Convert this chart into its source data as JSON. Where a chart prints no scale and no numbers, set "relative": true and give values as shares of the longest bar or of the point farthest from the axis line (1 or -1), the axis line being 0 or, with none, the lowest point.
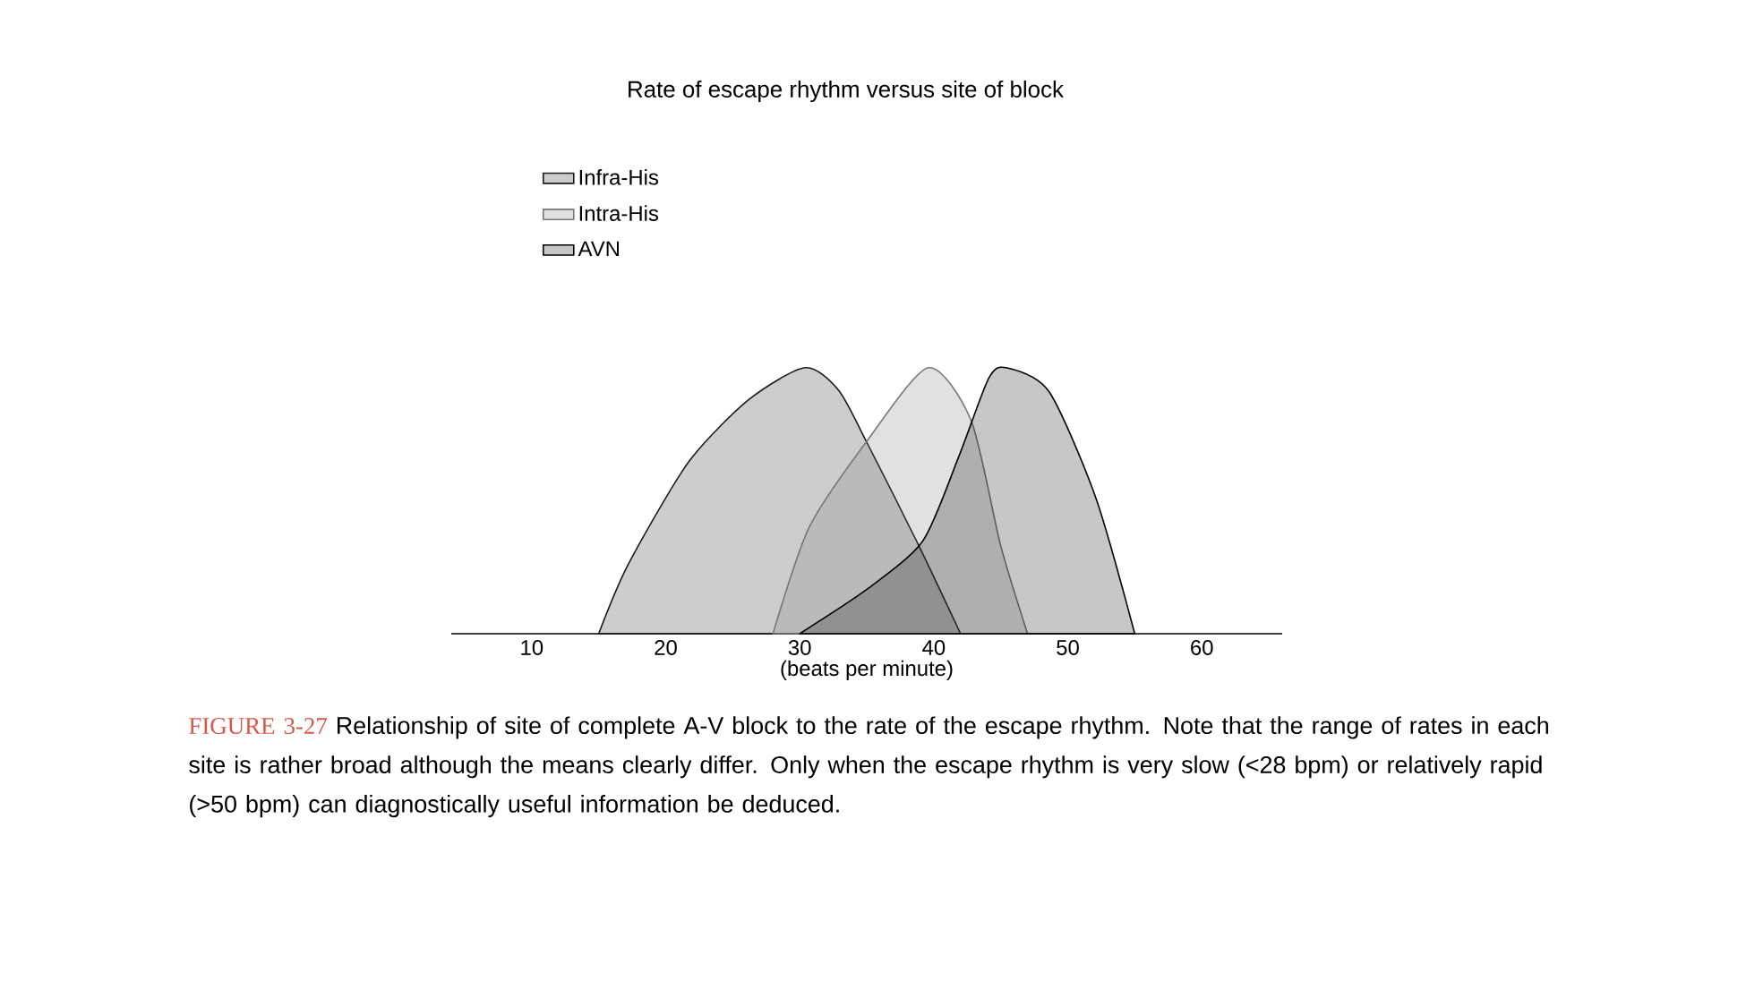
{
  "chart_data": {
    "type": "area",
    "title": "Rate of escape rhythm versus site of block",
    "xlabel": "(beats per minute)",
    "relative": true,
    "xlim": [
      4,
      66
    ],
    "xticks": [
      10,
      20,
      30,
      40,
      50,
      60
    ],
    "legend": "top left",
    "grid": false,
    "series": [
      {
        "name": "Infra-His",
        "color": "#1a1a1a",
        "x": [
          15,
          17.2,
          21.7,
          26.2,
          30.4,
          32.9,
          35.1,
          38.7,
          42
        ],
        "values": [
          0,
          0.26,
          0.645,
          0.88,
          1.0,
          0.915,
          0.71,
          0.35,
          0
        ]
      },
      {
        "name": "Intra-His",
        "color": "#777777",
        "x": [
          28,
          30.7,
          35.1,
          39.6,
          42.8,
          45.0,
          47
        ],
        "values": [
          0,
          0.4,
          0.73,
          1.0,
          0.8,
          0.33,
          0
        ]
      },
      {
        "name": "AVN",
        "color": "#000000",
        "x": [
          30,
          35.1,
          39.2,
          41.9,
          44.1,
          45.4,
          48.6,
          52.1,
          55
        ],
        "values": [
          0,
          0.17,
          0.35,
          0.67,
          0.96,
          1.0,
          0.91,
          0.51,
          0
        ]
      }
    ],
    "annotations": [
      "FIGURE 3-27",
      "Relationship of site of complete A-V block to the rate of the escape rhythm. Note that the range of rates in each site is rather broad although the means clearly differ. Only when the escape rhythm is very slow (<28 bpm) or relatively rapid (>50 bpm) can diagnostically useful information be deduced."
    ]
  }
}
